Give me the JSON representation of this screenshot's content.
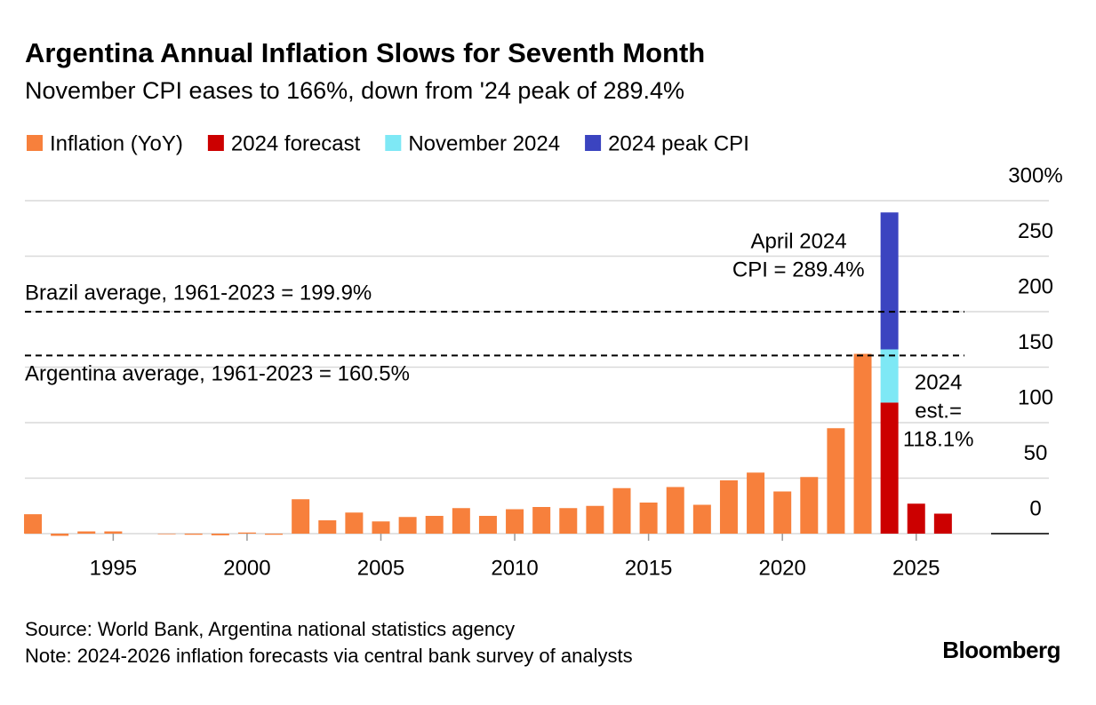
{
  "chart_data": {
    "type": "bar",
    "title": "Argentina Annual Inflation Slows for Seventh Month",
    "subtitle": "November CPI eases to 166%, down from '24 peak of 289.4%",
    "x": [
      1992,
      1993,
      1994,
      1995,
      1996,
      1997,
      1998,
      1999,
      2000,
      2001,
      2002,
      2003,
      2004,
      2005,
      2006,
      2007,
      2008,
      2009,
      2010,
      2011,
      2012,
      2013,
      2014,
      2015,
      2016,
      2017,
      2018,
      2019,
      2020,
      2021,
      2022,
      2023,
      2024,
      2025,
      2026
    ],
    "series": [
      {
        "name": "Inflation (YoY)",
        "color": "#f7803c",
        "values": [
          17.5,
          -2,
          2,
          2,
          0,
          -0.5,
          -1,
          -1.5,
          1,
          -1,
          31,
          12,
          19,
          11,
          15,
          16,
          23,
          16,
          22,
          24,
          23,
          25,
          41,
          28,
          42,
          26,
          48,
          55,
          38,
          51,
          95,
          162,
          null,
          null,
          null
        ]
      },
      {
        "name": "2024 forecast",
        "color": "#cc0000",
        "values": [
          null,
          null,
          null,
          null,
          null,
          null,
          null,
          null,
          null,
          null,
          null,
          null,
          null,
          null,
          null,
          null,
          null,
          null,
          null,
          null,
          null,
          null,
          null,
          null,
          null,
          null,
          null,
          null,
          null,
          null,
          null,
          null,
          118.1,
          27,
          18
        ]
      },
      {
        "name": "November 2024",
        "color": "#7ee8f5",
        "values": [
          null,
          null,
          null,
          null,
          null,
          null,
          null,
          null,
          null,
          null,
          null,
          null,
          null,
          null,
          null,
          null,
          null,
          null,
          null,
          null,
          null,
          null,
          null,
          null,
          null,
          null,
          null,
          null,
          null,
          null,
          null,
          null,
          47.9,
          null,
          null
        ]
      },
      {
        "name": "2024 peak CPI",
        "color": "#3b44c0",
        "values": [
          null,
          null,
          null,
          null,
          null,
          null,
          null,
          null,
          null,
          null,
          null,
          null,
          null,
          null,
          null,
          null,
          null,
          null,
          null,
          null,
          null,
          null,
          null,
          null,
          null,
          null,
          null,
          null,
          null,
          null,
          null,
          null,
          123.4,
          null,
          null
        ]
      }
    ],
    "xlim": [
      1991.7,
      2027.3
    ],
    "xticks": [
      1995,
      2000,
      2005,
      2010,
      2015,
      2020,
      2025
    ],
    "ylim": [
      0,
      300
    ],
    "yticks": [
      0,
      50,
      100,
      150,
      200,
      250,
      {
        "value": 300,
        "label": "300%"
      }
    ],
    "grid": true,
    "reference_lines": [
      {
        "label": "Brazil average, 1961-2023 = 199.9%",
        "value": 199.9
      },
      {
        "label": "Argentina average, 1961-2023 = 160.5%",
        "value": 160.5
      }
    ],
    "annotations": [
      {
        "lines": [
          "April 2024",
          "CPI = 289.4%"
        ],
        "x": 2024,
        "value": 289.4
      },
      {
        "lines": [
          "2024",
          "est.=",
          "118.1%"
        ],
        "x": 2024,
        "value": 118.1
      }
    ],
    "source": "Source: World Bank, Argentina national statistics agency",
    "note": "Note: 2024-2026 inflation forecasts via central bank survey of analysts",
    "logo": "Bloomberg"
  }
}
